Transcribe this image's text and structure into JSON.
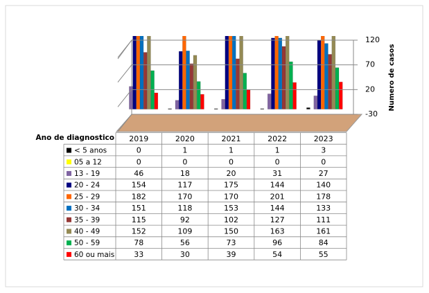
{
  "chart_data": {
    "type": "bar3d",
    "categories": [
      "2019",
      "2020",
      "2021",
      "2022",
      "2023"
    ],
    "series": [
      {
        "name": "< 5 anos",
        "color": "#000000",
        "values": [
          0,
          1,
          1,
          1,
          3
        ]
      },
      {
        "name": "05 a 12",
        "color": "#ffff00",
        "values": [
          0,
          0,
          0,
          0,
          0
        ]
      },
      {
        "name": "13 - 19",
        "color": "#8064a2",
        "values": [
          46,
          18,
          20,
          31,
          27
        ]
      },
      {
        "name": "20 - 24",
        "color": "#000080",
        "values": [
          154,
          117,
          175,
          144,
          140
        ]
      },
      {
        "name": "25 - 29",
        "color": "#ff6600",
        "values": [
          182,
          170,
          170,
          201,
          178
        ]
      },
      {
        "name": "30 - 34",
        "color": "#0070c0",
        "values": [
          151,
          118,
          153,
          144,
          133
        ]
      },
      {
        "name": "35 - 39",
        "color": "#953735",
        "values": [
          115,
          92,
          102,
          127,
          111
        ]
      },
      {
        "name": "40 - 49",
        "color": "#948a54",
        "values": [
          152,
          109,
          150,
          163,
          161
        ]
      },
      {
        "name": "50 - 59",
        "color": "#00b050",
        "values": [
          78,
          56,
          73,
          96,
          84
        ]
      },
      {
        "name": "60 ou mais",
        "color": "#ff0000",
        "values": [
          33,
          30,
          39,
          54,
          55
        ]
      }
    ],
    "ylim": [
      -30,
      120
    ],
    "yticks": [
      -30,
      20,
      70,
      120
    ],
    "y_label": "Numero de casos",
    "table_header": "Ano de diagnostico",
    "grid": true
  }
}
